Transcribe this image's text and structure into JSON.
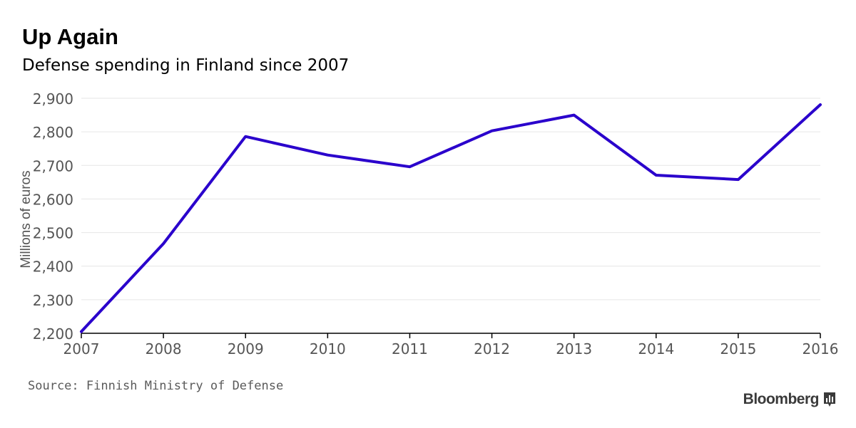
{
  "chart_data": {
    "type": "line",
    "title": "Up Again",
    "subtitle": "Defense spending in Finland since 2007",
    "xlabel": "",
    "ylabel": "Millions of euros",
    "x": [
      2007,
      2008,
      2009,
      2010,
      2011,
      2012,
      2013,
      2014,
      2015,
      2016
    ],
    "x_tick_labels": [
      "2007",
      "2008",
      "2009",
      "2010",
      "2011",
      "2012",
      "2013",
      "2014",
      "2015",
      "2016"
    ],
    "y_ticks": [
      2200,
      2300,
      2400,
      2500,
      2600,
      2700,
      2800,
      2900
    ],
    "y_tick_labels": [
      "2,200",
      "2,300",
      "2,400",
      "2,500",
      "2,600",
      "2,700",
      "2,800",
      "2,900"
    ],
    "ylim": [
      2200,
      2900
    ],
    "xlim": [
      2007,
      2016
    ],
    "grid": true,
    "series": [
      {
        "name": "Defense spending",
        "values": [
          2205,
          2467,
          2786,
          2731,
          2696,
          2803,
          2850,
          2671,
          2658,
          2881
        ],
        "color": "#2a00cc"
      }
    ]
  },
  "footer": {
    "source": "Source: Finnish Ministry of Defense",
    "brand": "Bloomberg"
  },
  "colors": {
    "line": "#2a00cc",
    "grid": "#e6e6e6",
    "axis": "#000000",
    "tick_text": "#555555"
  }
}
